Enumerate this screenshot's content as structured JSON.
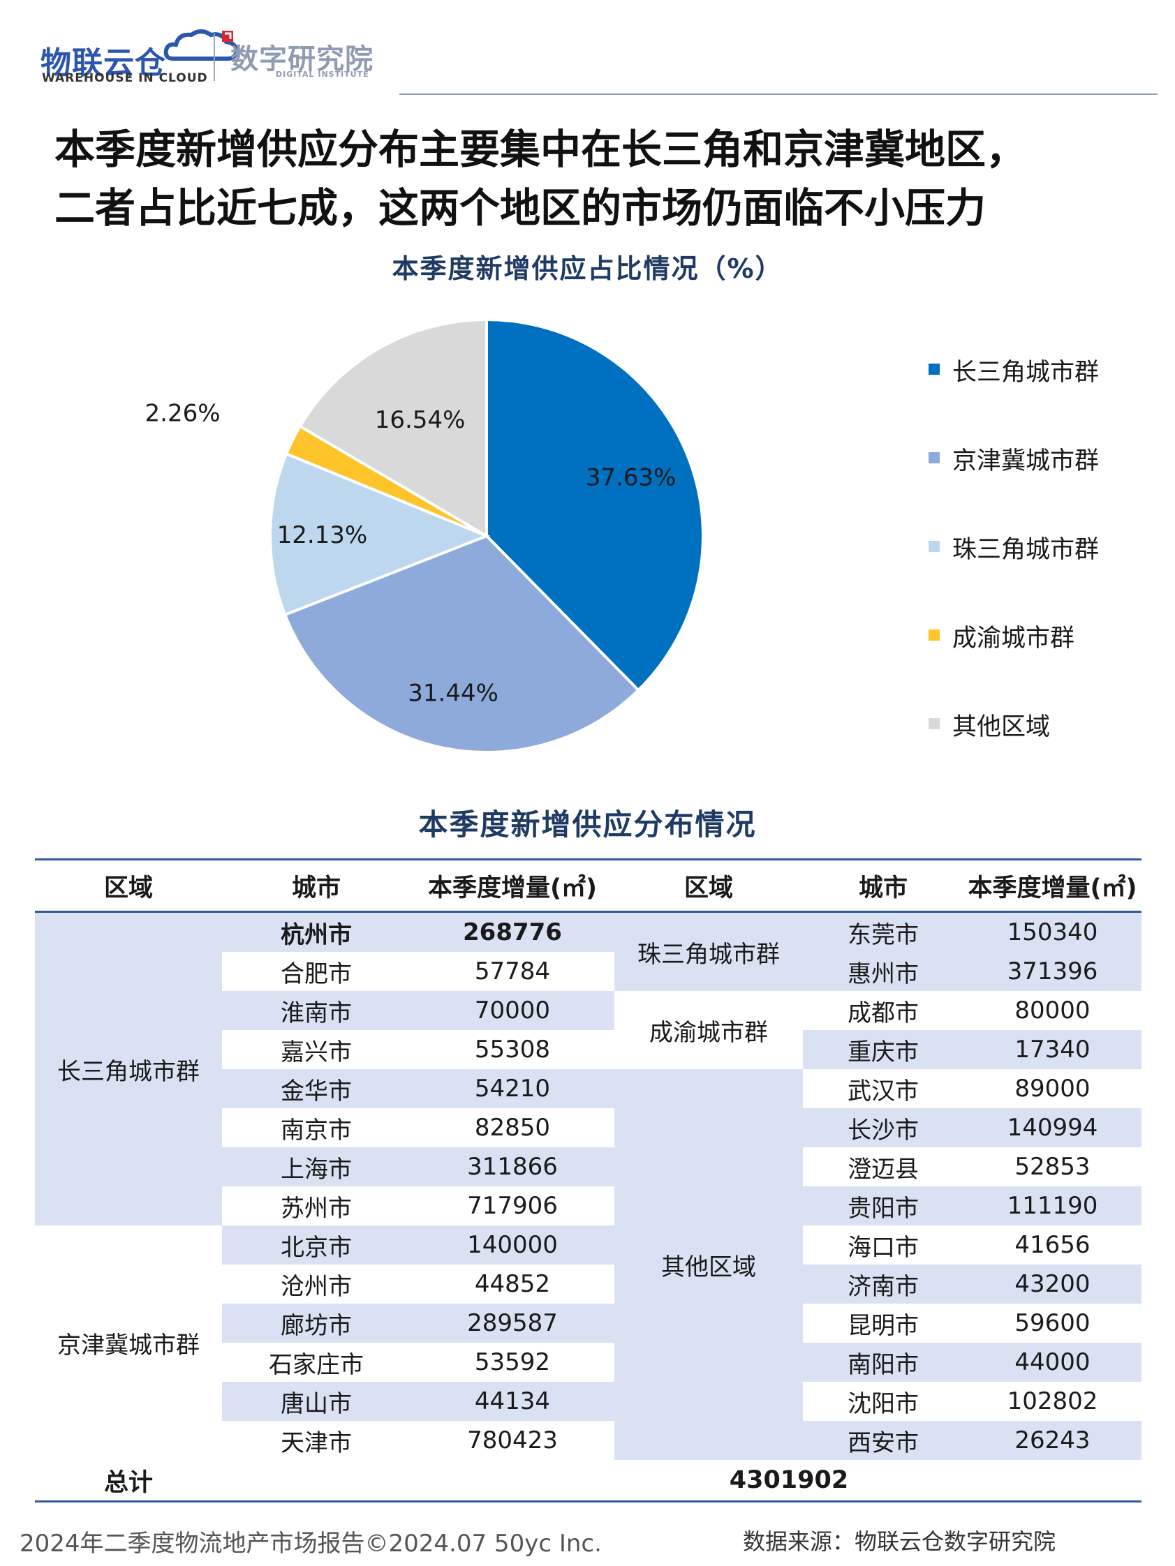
{
  "header": {
    "logo_cn": "物联云仓",
    "logo_en": "WAREHOUSE IN CLOUD",
    "institute_cn": "数字研究院",
    "institute_en": "DIGITAL INSTITUTE"
  },
  "headline": {
    "line1": "本季度新增供应分布主要集中在长三角和京津冀地区，",
    "line2": "二者占比近七成，这两个地区的市场仍面临不小压力"
  },
  "chart_data": {
    "type": "pie",
    "title": "本季度新增供应占比情况（%）",
    "series": [
      {
        "name": "长三角城市群",
        "value": 37.63,
        "label": "37.63%",
        "color": "#0070c0"
      },
      {
        "name": "京津冀城市群",
        "value": 31.44,
        "label": "31.44%",
        "color": "#8eaadb"
      },
      {
        "name": "珠三角城市群",
        "value": 12.13,
        "label": "12.13%",
        "color": "#bdd7ee"
      },
      {
        "name": "成渝城市群",
        "value": 2.26,
        "label": "2.26%",
        "color": "#ffc429"
      },
      {
        "name": "其他区域",
        "value": 16.54,
        "label": "16.54%",
        "color": "#d9d9d9"
      }
    ],
    "legend_position": "right"
  },
  "table": {
    "title": "本季度新增供应分布情况",
    "headers": [
      "区域",
      "城市",
      "本季度增量(㎡)",
      "区域",
      "城市",
      "本季度增量(㎡)"
    ],
    "left": {
      "groups": [
        {
          "region": "长三角城市群",
          "rows": [
            {
              "city": "杭州市",
              "value": "268776"
            },
            {
              "city": "合肥市",
              "value": "57784"
            },
            {
              "city": "淮南市",
              "value": "70000"
            },
            {
              "city": "嘉兴市",
              "value": "55308"
            },
            {
              "city": "金华市",
              "value": "54210"
            },
            {
              "city": "南京市",
              "value": "82850"
            },
            {
              "city": "上海市",
              "value": "311866"
            },
            {
              "city": "苏州市",
              "value": "717906"
            }
          ]
        },
        {
          "region": "京津冀城市群",
          "rows": [
            {
              "city": "北京市",
              "value": "140000"
            },
            {
              "city": "沧州市",
              "value": "44852"
            },
            {
              "city": "廊坊市",
              "value": "289587"
            },
            {
              "city": "石家庄市",
              "value": "53592"
            },
            {
              "city": "唐山市",
              "value": "44134"
            },
            {
              "city": "天津市",
              "value": "780423"
            }
          ]
        }
      ]
    },
    "right": {
      "groups": [
        {
          "region": "珠三角城市群",
          "rows": [
            {
              "city": "东莞市",
              "value": "150340"
            },
            {
              "city": "惠州市",
              "value": "371396"
            }
          ]
        },
        {
          "region": "成渝城市群",
          "rows": [
            {
              "city": "成都市",
              "value": "80000"
            },
            {
              "city": "重庆市",
              "value": "17340"
            }
          ]
        },
        {
          "region": "其他区域",
          "rows": [
            {
              "city": "武汉市",
              "value": "89000"
            },
            {
              "city": "长沙市",
              "value": "140994"
            },
            {
              "city": "澄迈县",
              "value": "52853"
            },
            {
              "city": "贵阳市",
              "value": "111190"
            },
            {
              "city": "海口市",
              "value": "41656"
            },
            {
              "city": "济南市",
              "value": "43200"
            },
            {
              "city": "昆明市",
              "value": "59600"
            },
            {
              "city": "南阳市",
              "value": "44000"
            },
            {
              "city": "沈阳市",
              "value": "102802"
            },
            {
              "city": "西安市",
              "value": "26243"
            }
          ]
        }
      ]
    },
    "total_label": "总计",
    "total_value": "4301902"
  },
  "footer": {
    "left": "2024年二季度物流地产市场报告©2024.07 50yc Inc.",
    "right": "数据来源：物联云仓数字研究院"
  }
}
